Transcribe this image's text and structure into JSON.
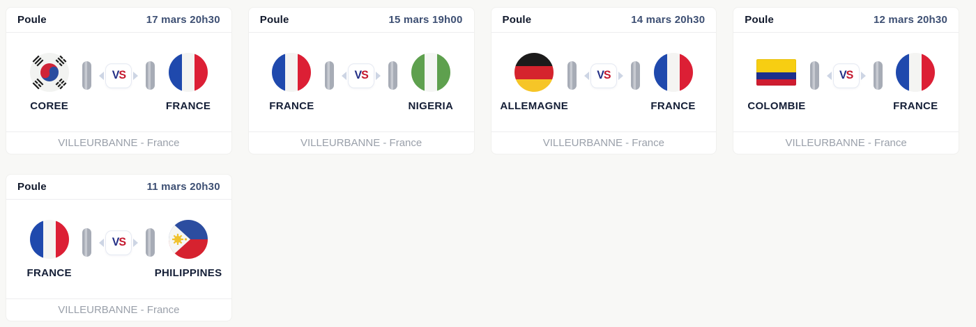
{
  "colors": {
    "page-bg": "#f8f8f6",
    "card-bg": "#ffffff",
    "card-border": "#f0f0ee",
    "divider": "#ededef",
    "stage-text": "#10182b",
    "date-text": "#3d4f73",
    "team-text": "#141e36",
    "venue-text": "#9aa0aa",
    "pill-gray": "#a7acb6",
    "pill-highlight": "#c7cad1",
    "chevron": "#cdd5e4",
    "vs-blue": "#232f86",
    "vs-red": "#c4182e"
  },
  "labels": {
    "vs": "VS"
  },
  "matches": [
    {
      "stage": "Poule",
      "datetime": "17 mars 20h30",
      "home": {
        "name": "COREE",
        "flag": "coree"
      },
      "away": {
        "name": "FRANCE",
        "flag": "france"
      },
      "venue": "VILLEURBANNE - France"
    },
    {
      "stage": "Poule",
      "datetime": "15 mars 19h00",
      "home": {
        "name": "FRANCE",
        "flag": "france"
      },
      "away": {
        "name": "NIGERIA",
        "flag": "nigeria"
      },
      "venue": "VILLEURBANNE - France"
    },
    {
      "stage": "Poule",
      "datetime": "14 mars 20h30",
      "home": {
        "name": "ALLEMAGNE",
        "flag": "allemagne"
      },
      "away": {
        "name": "FRANCE",
        "flag": "france"
      },
      "venue": "VILLEURBANNE - France"
    },
    {
      "stage": "Poule",
      "datetime": "12 mars 20h30",
      "home": {
        "name": "COLOMBIE",
        "flag": "colombie"
      },
      "away": {
        "name": "FRANCE",
        "flag": "france"
      },
      "venue": "VILLEURBANNE - France"
    },
    {
      "stage": "Poule",
      "datetime": "11 mars 20h30",
      "home": {
        "name": "FRANCE",
        "flag": "france"
      },
      "away": {
        "name": "PHILIPPINES",
        "flag": "philippines"
      },
      "venue": "VILLEURBANNE - France"
    }
  ]
}
